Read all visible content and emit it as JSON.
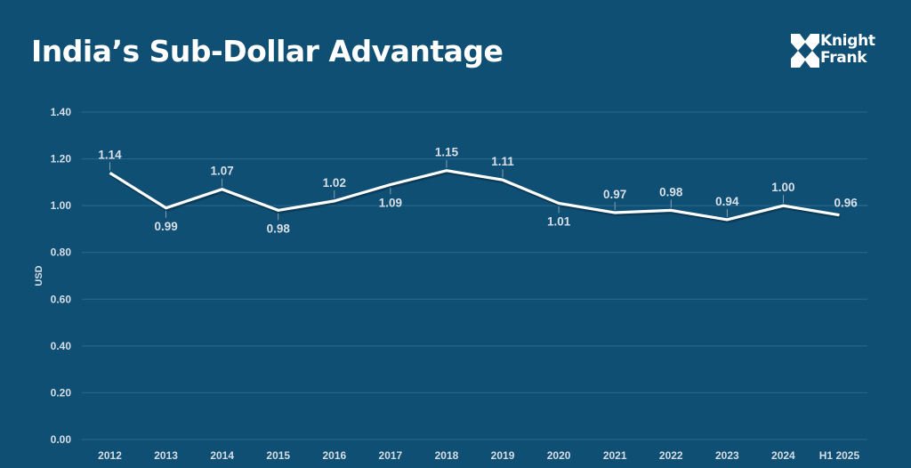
{
  "header": {
    "title": "India’s Sub-Dollar Advantage",
    "logo": {
      "line1": "Knight",
      "line2": "Frank"
    }
  },
  "colors": {
    "background": "#0f4f74",
    "line": "#ffffff",
    "grid": "#2a6a90",
    "text": "#d5dde5"
  },
  "chart_data": {
    "type": "line",
    "title": "India’s Sub-Dollar Advantage",
    "xlabel": "",
    "ylabel": "USD",
    "ylim": [
      0,
      1.4
    ],
    "yticks": [
      "0.00",
      "0.20",
      "0.40",
      "0.60",
      "0.80",
      "1.00",
      "1.20",
      "1.40"
    ],
    "grid": true,
    "legend": "none",
    "categories": [
      "2012",
      "2013",
      "2014",
      "2015",
      "2016",
      "2017",
      "2018",
      "2019",
      "2020",
      "2021",
      "2022",
      "2023",
      "2024",
      "H1 2025"
    ],
    "series": [
      {
        "name": "USD",
        "values": [
          1.14,
          0.99,
          1.07,
          0.98,
          1.02,
          1.09,
          1.15,
          1.11,
          1.01,
          0.97,
          0.98,
          0.94,
          1.0,
          0.96
        ],
        "labels": [
          "1.14",
          "0.99",
          "1.07",
          "0.98",
          "1.02",
          "1.09",
          "1.15",
          "1.11",
          "1.01",
          "0.97",
          "0.98",
          "0.94",
          "1.00",
          "0.96"
        ],
        "label_positions": [
          "above",
          "below",
          "above",
          "below",
          "above",
          "below",
          "above",
          "above",
          "below",
          "above",
          "above",
          "above",
          "above",
          "right"
        ]
      }
    ]
  }
}
